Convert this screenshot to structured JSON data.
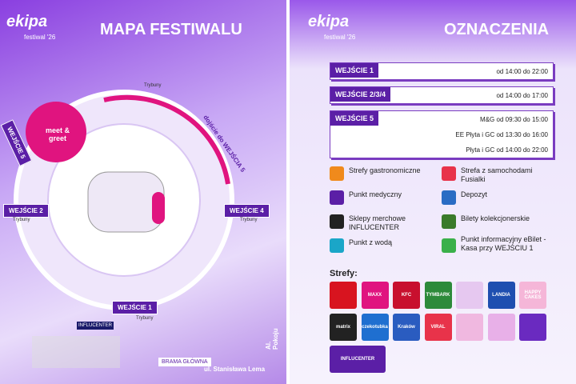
{
  "left": {
    "logo": "ekipa",
    "subtitle": "festiwal '26",
    "title": "MAPA FESTIWALU",
    "meet_greet": "meet & greet",
    "entrances": [
      "WEJŚCIE 5",
      "WEJŚCIE 2",
      "WEJŚCIE 4",
      "WEJŚCIE 1"
    ],
    "stands": [
      "Trybuny",
      "Trybuny",
      "Trybuny",
      "Trybuny"
    ],
    "path_label": "dojście do WEJŚCIA 5",
    "main_gate": "BRAMA GŁÓWNA",
    "street": "ul. Stanisława Lema",
    "avenue": "Al. Pokoju",
    "influcenter": "INFLUCENTER"
  },
  "right": {
    "logo": "ekipa",
    "subtitle": "festiwal '26",
    "title": "OZNACZENIA",
    "schedule": [
      {
        "gate": "WEJŚCIE 1",
        "times": [
          "od 14:00 do 22:00"
        ]
      },
      {
        "gate": "WEJŚCIE 2/3/4",
        "times": [
          "od 14:00 do 17:00"
        ]
      },
      {
        "gate": "WEJŚCIE 5",
        "times": [
          "M&G od 09:30 do 15:00",
          "EE Płyta i GC od 13:30 do 16:00",
          "Płyta i GC od 14:00 do 22:00"
        ]
      }
    ],
    "legend": [
      "Strefy gastronomiczne",
      "Strefa z samochodami Fusialki",
      "Punkt medyczny",
      "Depozyt",
      "Sklepy merchowe INFLUCENTER",
      "Bilety kolekcjonerskie",
      "Punkt z wodą",
      "Punkt informacyjny eBilet - Kasa przy WEJŚCIU 1"
    ],
    "zones_title": "Strefy:",
    "zones": [
      "",
      "MAXX",
      "KFC",
      "TYMBARK",
      "",
      "LANDIA",
      "HAPPY CAKES",
      "matrix",
      "czekotubka",
      "Kraków",
      "VIRAL",
      "",
      "",
      "",
      "INFLUCENTER"
    ]
  }
}
